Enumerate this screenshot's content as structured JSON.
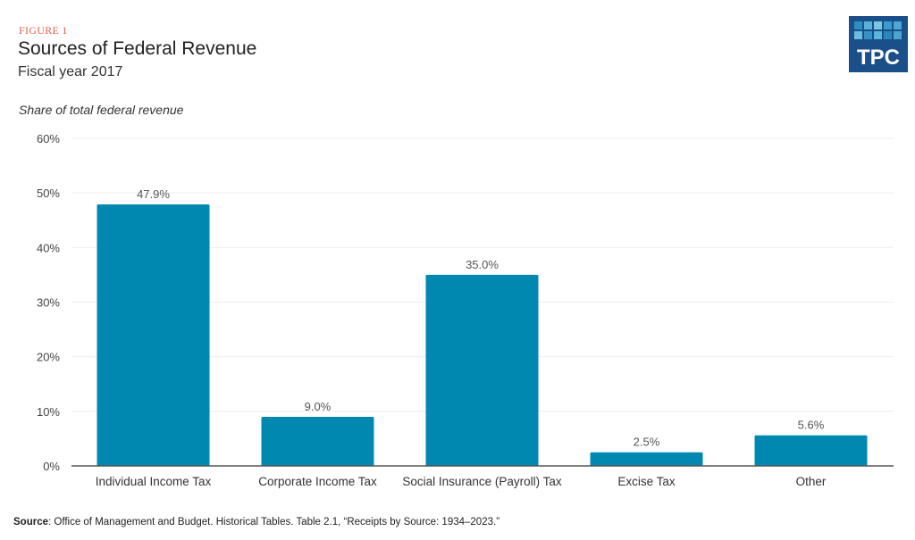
{
  "header": {
    "figure_label": "FIGURE 1",
    "title": "Sources of Federal Revenue",
    "subtitle": "Fiscal year 2017",
    "axis_caption": "Share of total federal revenue"
  },
  "logo": {
    "text": "TPC",
    "background": "#1b4f8a",
    "square_colors": [
      "#2d8fc0",
      "#55b2d6",
      "#7cc6e2",
      "#3a9ccb",
      "#4aa9d2",
      "#6bbcdc",
      "#3593c4",
      "#5ab7d9",
      "#2b86b9",
      "#48a6cf"
    ]
  },
  "footer": {
    "source_label": "Source",
    "source_text": ": Office of Management and Budget. Historical Tables. Table 2.1, “Receipts by Source: 1934–2023.”"
  },
  "colors": {
    "bar": "#0088b0",
    "figure_label": "#e0604e",
    "gridline": "#eeeeee",
    "axis": "#555555"
  },
  "chart_data": {
    "type": "bar",
    "title": "Sources of Federal Revenue",
    "subtitle": "Fiscal year 2017",
    "xlabel": "",
    "ylabel": "Share of total federal revenue",
    "categories": [
      "Individual Income Tax",
      "Corporate Income Tax",
      "Social Insurance (Payroll) Tax",
      "Excise Tax",
      "Other"
    ],
    "values": [
      47.9,
      9.0,
      35.0,
      2.5,
      5.6
    ],
    "data_labels": [
      "47.9%",
      "9.0%",
      "35.0%",
      "2.5%",
      "5.6%"
    ],
    "ylim": [
      0,
      60
    ],
    "yticks": [
      0,
      10,
      20,
      30,
      40,
      50,
      60
    ],
    "ytick_labels": [
      "0%",
      "10%",
      "20%",
      "30%",
      "40%",
      "50%",
      "60%"
    ],
    "grid": true,
    "legend": "none"
  }
}
